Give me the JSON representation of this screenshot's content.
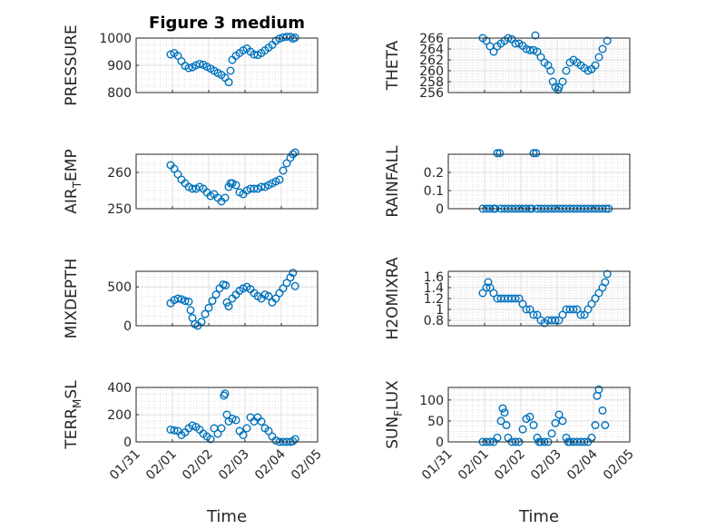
{
  "figure": {
    "title": "Figure 3 medium",
    "xlabel": "Time",
    "xticks": [
      "01/31",
      "02/01",
      "02/02",
      "02/03",
      "02/04",
      "02/05"
    ],
    "marker_color": "#0072bd"
  },
  "chart_data": [
    {
      "type": "scatter",
      "ylabel": "PRESSURE",
      "ylim": [
        800,
        1000
      ],
      "yticks": [
        800,
        900,
        1000
      ],
      "grid": true,
      "minor_grid": true,
      "x": [
        0.95,
        1.05,
        1.15,
        1.25,
        1.35,
        1.45,
        1.55,
        1.65,
        1.75,
        1.85,
        1.95,
        2.05,
        2.15,
        2.25,
        2.35,
        2.45,
        2.55,
        2.6,
        2.65,
        2.75,
        2.85,
        2.95,
        3.05,
        3.15,
        3.25,
        3.35,
        3.45,
        3.55,
        3.65,
        3.75,
        3.85,
        3.95,
        4.05,
        4.15,
        4.25,
        4.32,
        4.38
      ],
      "y": [
        940,
        945,
        935,
        915,
        898,
        890,
        893,
        900,
        905,
        902,
        895,
        888,
        880,
        872,
        865,
        855,
        838,
        880,
        920,
        935,
        945,
        955,
        962,
        950,
        940,
        938,
        945,
        955,
        965,
        975,
        990,
        998,
        1003,
        1005,
        1005,
        998,
        1002
      ]
    },
    {
      "type": "scatter",
      "ylabel": "THETA",
      "ylim": [
        256,
        266
      ],
      "yticks": [
        256,
        258,
        260,
        262,
        264,
        266
      ],
      "grid": true,
      "minor_grid": true,
      "x": [
        0.95,
        1.05,
        1.15,
        1.25,
        1.35,
        1.45,
        1.55,
        1.65,
        1.75,
        1.85,
        1.95,
        2.05,
        2.15,
        2.25,
        2.35,
        2.4,
        2.45,
        2.55,
        2.65,
        2.75,
        2.82,
        2.88,
        2.95,
        3.02,
        3.05,
        3.15,
        3.25,
        3.35,
        3.45,
        3.55,
        3.65,
        3.75,
        3.85,
        3.95,
        4.05,
        4.15,
        4.25,
        4.38
      ],
      "y": [
        266,
        265.5,
        264.5,
        263.5,
        264.5,
        265,
        265.5,
        266,
        265.8,
        265,
        265,
        264.6,
        264,
        263.8,
        263.8,
        266.5,
        263.5,
        262.5,
        261.5,
        261,
        260,
        258,
        257,
        256.5,
        257,
        258,
        260,
        261.5,
        262,
        261.5,
        261,
        260.5,
        260,
        260.3,
        261,
        262.5,
        264,
        265.5
      ]
    },
    {
      "type": "scatter",
      "ylabel": "AIR_TEMP",
      "ylim": [
        250,
        265
      ],
      "yticks": [
        250,
        260
      ],
      "grid": true,
      "minor_grid": true,
      "x": [
        0.95,
        1.05,
        1.15,
        1.25,
        1.35,
        1.45,
        1.55,
        1.65,
        1.75,
        1.85,
        1.95,
        2.05,
        2.15,
        2.25,
        2.35,
        2.45,
        2.55,
        2.6,
        2.65,
        2.75,
        2.85,
        2.95,
        3.05,
        3.15,
        3.25,
        3.35,
        3.45,
        3.55,
        3.65,
        3.75,
        3.85,
        3.95,
        4.05,
        4.15,
        4.25,
        4.32,
        4.38
      ],
      "y": [
        262,
        261,
        259.5,
        258,
        257,
        256,
        255.5,
        255.5,
        256,
        255.5,
        254.5,
        253.5,
        254,
        253,
        252,
        253,
        256,
        257,
        257,
        256.5,
        254.5,
        254,
        255,
        255.5,
        255.5,
        255.5,
        256,
        256,
        256.5,
        257,
        257.5,
        258,
        260.5,
        262.5,
        264,
        265,
        265.5
      ]
    },
    {
      "type": "scatter",
      "ylabel": "RAINFALL",
      "ylim": [
        0,
        0.3
      ],
      "yticks": [
        0,
        0.1,
        0.2
      ],
      "grid": true,
      "minor_grid": true,
      "x": [
        0.95,
        1.05,
        1.15,
        1.25,
        1.3,
        1.35,
        1.42,
        1.45,
        1.55,
        1.65,
        1.75,
        1.85,
        1.95,
        2.05,
        2.15,
        2.25,
        2.3,
        2.35,
        2.42,
        2.45,
        2.55,
        2.65,
        2.75,
        2.85,
        2.95,
        3.05,
        3.15,
        3.25,
        3.35,
        3.45,
        3.55,
        3.65,
        3.75,
        3.85,
        3.95,
        4.05,
        4.15,
        4.25,
        4.35,
        4.42
      ],
      "y": [
        0,
        0,
        0,
        0,
        0,
        0.33,
        0.33,
        0,
        0,
        0,
        0,
        0,
        0,
        0,
        0,
        0,
        0,
        0.33,
        0.33,
        0,
        0,
        0,
        0,
        0,
        0,
        0,
        0,
        0,
        0,
        0,
        0,
        0,
        0,
        0,
        0,
        0,
        0,
        0,
        0,
        0
      ]
    },
    {
      "type": "scatter",
      "ylabel": "MIXDEPTH",
      "ylim": [
        0,
        700
      ],
      "yticks": [
        0,
        500
      ],
      "grid": true,
      "minor_grid": true,
      "x": [
        0.95,
        1.05,
        1.15,
        1.25,
        1.35,
        1.45,
        1.5,
        1.55,
        1.62,
        1.7,
        1.8,
        1.9,
        2.0,
        2.1,
        2.2,
        2.3,
        2.4,
        2.47,
        2.5,
        2.55,
        2.65,
        2.75,
        2.85,
        2.95,
        3.05,
        3.15,
        3.25,
        3.35,
        3.45,
        3.55,
        3.65,
        3.75,
        3.85,
        3.95,
        4.05,
        4.15,
        4.25,
        4.32,
        4.38
      ],
      "y": [
        290,
        330,
        350,
        340,
        320,
        310,
        200,
        100,
        20,
        0,
        50,
        150,
        230,
        320,
        400,
        480,
        530,
        520,
        300,
        250,
        350,
        400,
        450,
        480,
        500,
        470,
        420,
        380,
        350,
        400,
        380,
        300,
        350,
        420,
        480,
        550,
        620,
        680,
        510
      ]
    },
    {
      "type": "scatter",
      "ylabel": "H2OMIXRA",
      "ylim": [
        0.7,
        1.7
      ],
      "yticks": [
        0.8,
        1.0,
        1.2,
        1.4,
        1.6
      ],
      "grid": true,
      "minor_grid": true,
      "x": [
        0.95,
        1.05,
        1.1,
        1.15,
        1.25,
        1.35,
        1.45,
        1.55,
        1.65,
        1.75,
        1.85,
        1.95,
        2.05,
        2.15,
        2.25,
        2.35,
        2.45,
        2.55,
        2.65,
        2.75,
        2.85,
        2.95,
        3.05,
        3.15,
        3.25,
        3.35,
        3.45,
        3.55,
        3.65,
        3.75,
        3.85,
        3.95,
        4.05,
        4.15,
        4.25,
        4.32,
        4.38
      ],
      "y": [
        1.3,
        1.4,
        1.5,
        1.4,
        1.3,
        1.2,
        1.2,
        1.2,
        1.2,
        1.2,
        1.2,
        1.2,
        1.1,
        1.0,
        1.0,
        0.9,
        0.9,
        0.8,
        0.75,
        0.8,
        0.8,
        0.8,
        0.8,
        0.9,
        1.0,
        1.0,
        1.0,
        1.0,
        0.9,
        0.9,
        1.0,
        1.1,
        1.2,
        1.3,
        1.4,
        1.5,
        1.65
      ]
    },
    {
      "type": "scatter",
      "ylabel": "TERR_MSL",
      "ylim": [
        0,
        400
      ],
      "yticks": [
        0,
        200,
        400
      ],
      "grid": true,
      "minor_grid": true,
      "x": [
        0.95,
        1.05,
        1.15,
        1.25,
        1.35,
        1.45,
        1.55,
        1.65,
        1.75,
        1.85,
        1.95,
        2.05,
        2.15,
        2.25,
        2.35,
        2.42,
        2.45,
        2.5,
        2.55,
        2.65,
        2.75,
        2.85,
        2.95,
        3.05,
        3.15,
        3.25,
        3.35,
        3.45,
        3.55,
        3.65,
        3.75,
        3.85,
        3.95,
        4.05,
        4.15,
        4.25,
        4.32,
        4.38
      ],
      "y": [
        90,
        85,
        80,
        50,
        70,
        100,
        120,
        110,
        90,
        60,
        40,
        20,
        100,
        60,
        100,
        340,
        355,
        200,
        150,
        170,
        160,
        80,
        50,
        100,
        180,
        150,
        180,
        150,
        100,
        80,
        40,
        10,
        0,
        0,
        0,
        0,
        5,
        20
      ]
    },
    {
      "type": "scatter",
      "ylabel": "SUN_FLUX",
      "ylim": [
        0,
        130
      ],
      "yticks": [
        0,
        50,
        100
      ],
      "grid": true,
      "minor_grid": true,
      "x": [
        0.95,
        1.05,
        1.15,
        1.25,
        1.35,
        1.45,
        1.5,
        1.55,
        1.6,
        1.65,
        1.75,
        1.85,
        1.95,
        2.05,
        2.15,
        2.25,
        2.35,
        2.45,
        2.5,
        2.55,
        2.65,
        2.75,
        2.85,
        2.95,
        3.05,
        3.15,
        3.25,
        3.3,
        3.35,
        3.45,
        3.55,
        3.65,
        3.75,
        3.85,
        3.95,
        4.05,
        4.1,
        4.15,
        4.25,
        4.32
      ],
      "y": [
        0,
        0,
        0,
        0,
        10,
        50,
        80,
        70,
        40,
        10,
        0,
        0,
        0,
        30,
        55,
        60,
        40,
        10,
        0,
        0,
        0,
        0,
        20,
        45,
        65,
        50,
        10,
        0,
        0,
        0,
        0,
        0,
        0,
        0,
        10,
        40,
        110,
        125,
        75,
        40
      ]
    }
  ]
}
